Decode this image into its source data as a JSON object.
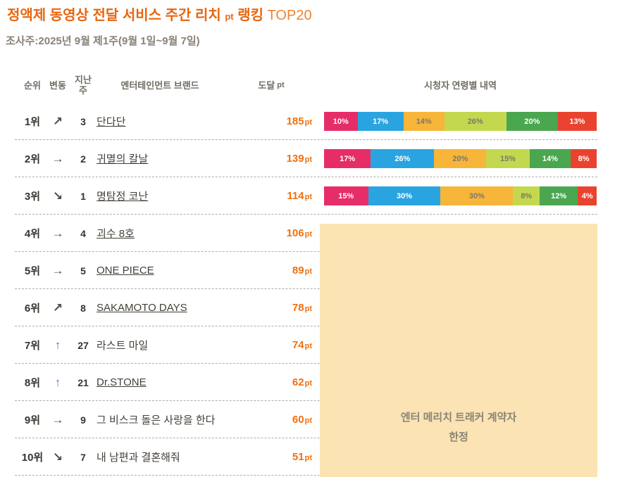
{
  "title": {
    "main": "정액제 동영상 전달 서비스 주간 리치",
    "pt_label": "pt",
    "ranking_label": "랭킹",
    "top_label": "TOP20"
  },
  "subtitle": "조사주:2025년 9월 제1주(9월 1일~9월 7일)",
  "header": {
    "rank": "순위",
    "change": "변동",
    "last_week_line1": "지난",
    "last_week_line2": "주",
    "brand": "엔터테인먼트 브랜드",
    "reach": "도달",
    "reach_unit": "pt",
    "age": "시청자 연령별 내역"
  },
  "arrows": {
    "up-right": "↗",
    "right": "→",
    "down-right": "↘",
    "up": "↑"
  },
  "colors": {
    "title_orange": "#e8650e",
    "title_light_orange": "#ef8432",
    "reach_orange": "#f1700f",
    "arrow_default": "#4a4a4a",
    "arrow_up_blue": "#4a7dc9",
    "overlay_bg": "#fbe3b3",
    "overlay_text": "#8a8478"
  },
  "palette": {
    "pink": {
      "bg": "#e62d67",
      "fg": "#ffffff"
    },
    "blue": {
      "bg": "#2aa4e0",
      "fg": "#ffffff"
    },
    "amber": {
      "bg": "#f7b53a",
      "fg": "#7b7869"
    },
    "lime": {
      "bg": "#c3d84f",
      "fg": "#7b7869"
    },
    "green": {
      "bg": "#4aa64f",
      "fg": "#ffffff"
    },
    "red": {
      "bg": "#e9432f",
      "fg": "#ffffff"
    }
  },
  "rows": [
    {
      "rank": "1위",
      "change": "up-right",
      "week": "3",
      "brand": "단다단",
      "link": true,
      "reach": "185",
      "bar": [
        {
          "v": 10,
          "c": "pink"
        },
        {
          "v": 17,
          "c": "blue"
        },
        {
          "v": 14,
          "c": "amber"
        },
        {
          "v": 26,
          "c": "lime"
        },
        {
          "v": 20,
          "c": "green"
        },
        {
          "v": 13,
          "c": "red"
        }
      ]
    },
    {
      "rank": "2위",
      "change": "right",
      "week": "2",
      "brand": "귀멸의 칼날",
      "link": true,
      "reach": "139",
      "bar": [
        {
          "v": 17,
          "c": "pink"
        },
        {
          "v": 26,
          "c": "blue"
        },
        {
          "v": 20,
          "c": "amber"
        },
        {
          "v": 15,
          "c": "lime"
        },
        {
          "v": 14,
          "c": "green"
        },
        {
          "v": 8,
          "c": "red"
        }
      ]
    },
    {
      "rank": "3위",
      "change": "down-right",
      "week": "1",
      "brand": "명탐정 코난",
      "link": true,
      "reach": "114",
      "bar": [
        {
          "v": 15,
          "c": "pink"
        },
        {
          "v": 30,
          "c": "blue"
        },
        {
          "v": 30,
          "c": "amber"
        },
        {
          "v": 8,
          "c": "lime"
        },
        {
          "v": 12,
          "c": "green"
        },
        {
          "v": 4,
          "c": "red"
        }
      ]
    },
    {
      "rank": "4위",
      "change": "right",
      "week": "4",
      "brand": "괴수 8호",
      "link": true,
      "reach": "106",
      "bar": null
    },
    {
      "rank": "5위",
      "change": "right",
      "week": "5",
      "brand": "ONE PIECE",
      "link": true,
      "reach": "89",
      "bar": null
    },
    {
      "rank": "6위",
      "change": "up-right",
      "week": "8",
      "brand": "SAKAMOTO DAYS",
      "link": true,
      "reach": "78",
      "bar": null
    },
    {
      "rank": "7위",
      "change": "up",
      "week": "27",
      "brand": "라스트 마일",
      "link": false,
      "reach": "74",
      "bar": null
    },
    {
      "rank": "8위",
      "change": "up",
      "week": "21",
      "brand": "Dr.STONE",
      "link": true,
      "reach": "62",
      "bar": null
    },
    {
      "rank": "9위",
      "change": "right",
      "week": "9",
      "brand": "그 비스크 돌은 사랑을 한다",
      "link": false,
      "reach": "60",
      "bar": null
    },
    {
      "rank": "10위",
      "change": "down-right",
      "week": "7",
      "brand": "내 남편과 결혼해줘",
      "link": false,
      "reach": "51",
      "bar": null
    }
  ],
  "overlay": {
    "line1": "엔터 메리치 트래커 계약자",
    "line2": "한정"
  }
}
